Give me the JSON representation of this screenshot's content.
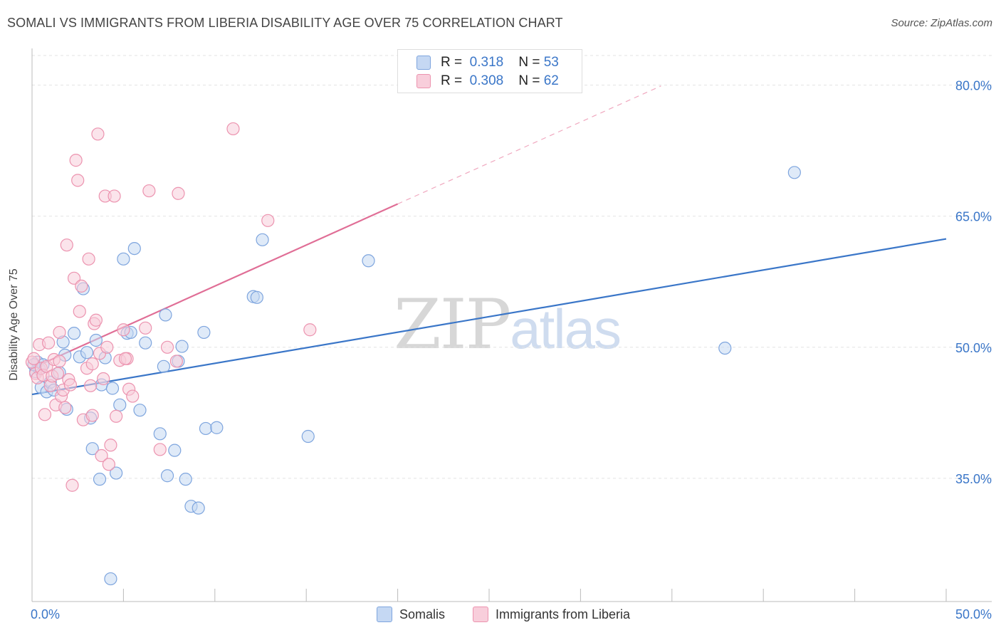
{
  "title": "SOMALI VS IMMIGRANTS FROM LIBERIA DISABILITY AGE OVER 75 CORRELATION CHART",
  "source": "Source: ZipAtlas.com",
  "watermark": {
    "zip": "ZIP",
    "atlas": "atlas"
  },
  "legend": [
    {
      "r_label": "R =",
      "r_value": "0.318",
      "n_label": "N =",
      "n_value": "53"
    },
    {
      "r_label": "R =",
      "r_value": "0.308",
      "n_label": "N =",
      "n_value": "62"
    }
  ],
  "bottom_legend": [
    "Somalis",
    "Immigrants from Liberia"
  ],
  "colors": {
    "somalis_fill": "#c5d8f3",
    "somalis_stroke": "#7ea5de",
    "somalis_line": "#3a76c8",
    "liberia_fill": "#f8cedb",
    "liberia_stroke": "#ec93af",
    "liberia_line": "#e06e96",
    "axis_text": "#3a76c8",
    "grid": "#e3e3e3"
  },
  "chart_data": {
    "type": "scatter",
    "title": "SOMALI VS IMMIGRANTS FROM LIBERIA DISABILITY AGE OVER 75 CORRELATION CHART",
    "xlabel": "",
    "ylabel": "Disability Age Over 75",
    "xlim": [
      0,
      50
    ],
    "ylim": [
      20.9,
      84.2
    ],
    "x_tick_labels": [
      {
        "value": 0,
        "label": "0.0%"
      },
      {
        "value": 50,
        "label": "50.0%"
      }
    ],
    "y_tick_labels": [
      {
        "value": 35,
        "label": "35.0%"
      },
      {
        "value": 50,
        "label": "50.0%"
      },
      {
        "value": 65,
        "label": "65.0%"
      },
      {
        "value": 80,
        "label": "80.0%"
      }
    ],
    "legend_position": "top-center",
    "series": [
      {
        "name": "Somalis",
        "r": 0.318,
        "n": 53,
        "trend": {
          "x": [
            0,
            50
          ],
          "y": [
            44.6,
            62.4
          ],
          "dashed_extension": false
        },
        "points": [
          [
            0.2,
            47.2
          ],
          [
            0.3,
            48.3
          ],
          [
            0.4,
            47.5
          ],
          [
            0.5,
            45.4
          ],
          [
            0.6,
            48.0
          ],
          [
            0.8,
            44.9
          ],
          [
            1.0,
            46.0
          ],
          [
            1.2,
            45.1
          ],
          [
            1.5,
            47.1
          ],
          [
            1.7,
            50.6
          ],
          [
            1.8,
            49.1
          ],
          [
            1.9,
            42.9
          ],
          [
            2.3,
            51.6
          ],
          [
            2.6,
            48.9
          ],
          [
            2.8,
            56.7
          ],
          [
            3.0,
            49.4
          ],
          [
            3.2,
            41.9
          ],
          [
            3.3,
            38.4
          ],
          [
            3.5,
            50.8
          ],
          [
            3.7,
            34.9
          ],
          [
            3.8,
            45.7
          ],
          [
            4.0,
            48.8
          ],
          [
            4.3,
            23.5
          ],
          [
            4.4,
            45.3
          ],
          [
            4.6,
            35.6
          ],
          [
            4.8,
            43.4
          ],
          [
            5.0,
            60.1
          ],
          [
            5.2,
            51.6
          ],
          [
            5.4,
            51.7
          ],
          [
            5.6,
            61.3
          ],
          [
            5.9,
            42.8
          ],
          [
            6.2,
            50.5
          ],
          [
            7.0,
            40.1
          ],
          [
            7.2,
            47.8
          ],
          [
            7.3,
            53.7
          ],
          [
            7.4,
            35.3
          ],
          [
            7.8,
            38.2
          ],
          [
            8.0,
            48.4
          ],
          [
            8.2,
            50.1
          ],
          [
            8.4,
            34.9
          ],
          [
            8.7,
            31.8
          ],
          [
            9.1,
            31.6
          ],
          [
            9.4,
            51.7
          ],
          [
            9.5,
            40.7
          ],
          [
            10.1,
            40.8
          ],
          [
            12.1,
            55.8
          ],
          [
            12.3,
            55.7
          ],
          [
            12.6,
            62.3
          ],
          [
            15.1,
            39.8
          ],
          [
            18.4,
            59.9
          ],
          [
            37.9,
            49.9
          ],
          [
            41.7,
            70.0
          ],
          [
            0.1,
            48.0
          ]
        ]
      },
      {
        "name": "Immigrants from Liberia",
        "r": 0.308,
        "n": 62,
        "trend": {
          "x": [
            0,
            20
          ],
          "y": [
            47.6,
            66.4
          ],
          "dashed_extension": {
            "x": [
              20,
              34.4
            ],
            "y": [
              66.4,
              79.9
            ]
          }
        },
        "points": [
          [
            0.0,
            48.3
          ],
          [
            0.1,
            48.7
          ],
          [
            0.2,
            47.0
          ],
          [
            0.3,
            46.5
          ],
          [
            0.4,
            50.3
          ],
          [
            0.5,
            47.6
          ],
          [
            0.6,
            46.8
          ],
          [
            0.7,
            42.3
          ],
          [
            0.8,
            47.8
          ],
          [
            0.9,
            50.5
          ],
          [
            1.0,
            45.6
          ],
          [
            1.1,
            46.7
          ],
          [
            1.2,
            48.6
          ],
          [
            1.3,
            43.4
          ],
          [
            1.4,
            47.0
          ],
          [
            1.5,
            51.7
          ],
          [
            1.6,
            44.4
          ],
          [
            1.7,
            45.1
          ],
          [
            1.8,
            43.1
          ],
          [
            1.9,
            61.7
          ],
          [
            2.0,
            46.3
          ],
          [
            2.1,
            45.7
          ],
          [
            2.2,
            34.2
          ],
          [
            2.3,
            57.9
          ],
          [
            2.4,
            71.4
          ],
          [
            2.5,
            69.1
          ],
          [
            2.6,
            54.1
          ],
          [
            2.7,
            57.0
          ],
          [
            2.8,
            41.7
          ],
          [
            3.0,
            47.6
          ],
          [
            3.1,
            60.1
          ],
          [
            3.2,
            45.6
          ],
          [
            3.3,
            42.2
          ],
          [
            3.4,
            52.7
          ],
          [
            3.5,
            53.1
          ],
          [
            3.6,
            74.4
          ],
          [
            3.7,
            49.3
          ],
          [
            3.8,
            37.6
          ],
          [
            3.9,
            46.4
          ],
          [
            4.0,
            67.3
          ],
          [
            4.1,
            50.0
          ],
          [
            4.2,
            36.6
          ],
          [
            4.3,
            38.8
          ],
          [
            4.5,
            67.3
          ],
          [
            4.6,
            42.1
          ],
          [
            4.8,
            48.5
          ],
          [
            5.0,
            52.0
          ],
          [
            5.2,
            48.7
          ],
          [
            5.3,
            45.2
          ],
          [
            5.5,
            44.4
          ],
          [
            6.2,
            52.2
          ],
          [
            6.4,
            67.9
          ],
          [
            7.0,
            38.3
          ],
          [
            7.4,
            50.0
          ],
          [
            7.9,
            48.4
          ],
          [
            8.0,
            67.6
          ],
          [
            11.0,
            75.0
          ],
          [
            12.9,
            64.5
          ],
          [
            15.2,
            52.0
          ],
          [
            5.1,
            48.7
          ],
          [
            3.3,
            48.1
          ],
          [
            1.5,
            48.4
          ]
        ]
      }
    ]
  }
}
